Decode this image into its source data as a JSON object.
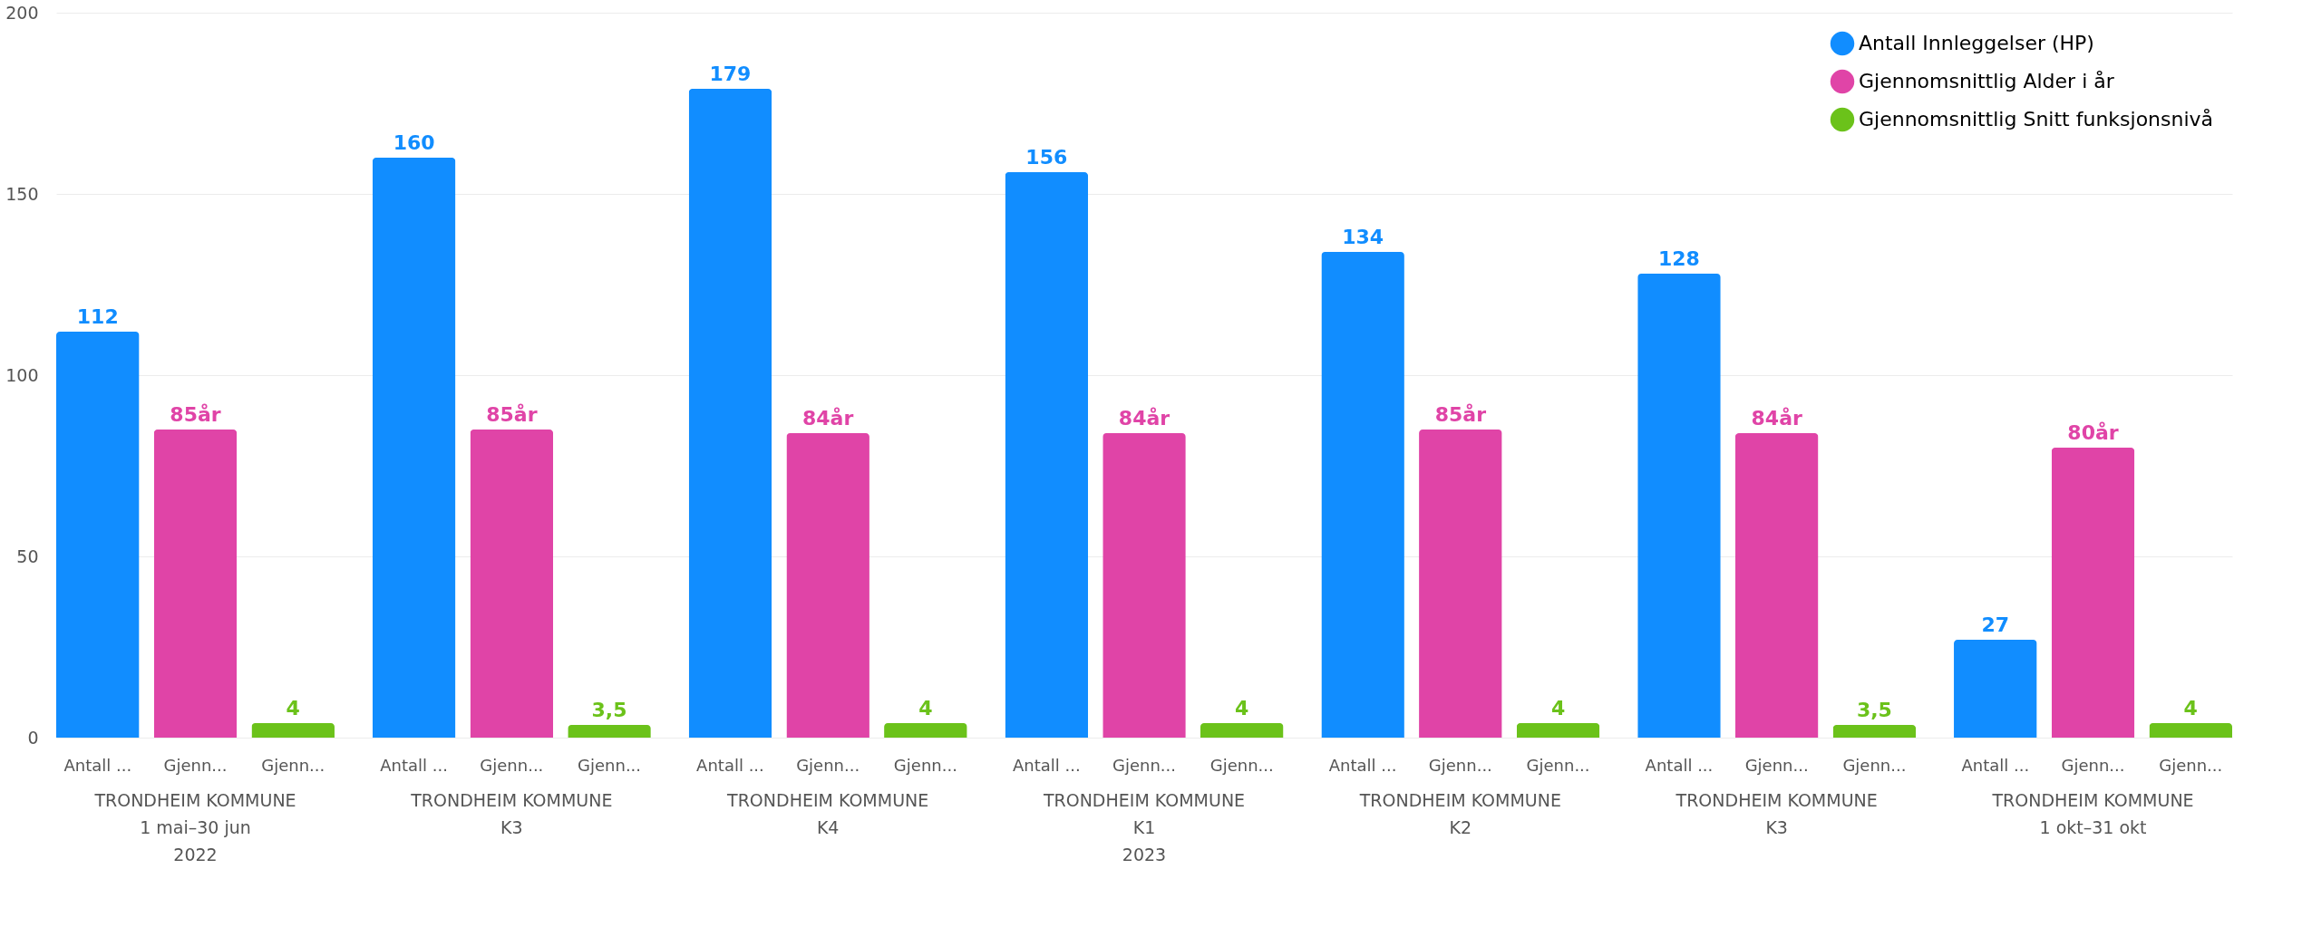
{
  "chart_data": {
    "type": "bar",
    "categories": [
      "TRONDHEIM KOMMUNE\n1 mai–30 jun\n2022",
      "TRONDHEIM KOMMUNE\nK3",
      "TRONDHEIM KOMMUNE\nK4",
      "TRONDHEIM KOMMUNE\nK1\n2023",
      "TRONDHEIM KOMMUNE\nK2",
      "TRONDHEIM KOMMUNE\nK3",
      "TRONDHEIM KOMMUNE\n1 okt–31 okt"
    ],
    "series": [
      {
        "name": "Antall Innleggelser (HP)",
        "color": "#118dff",
        "values": [
          112,
          160,
          179,
          156,
          134,
          128,
          27
        ],
        "value_labels": [
          "112",
          "160",
          "179",
          "156",
          "134",
          "128",
          "27"
        ]
      },
      {
        "name": "Gjennomsnittlig Alder i år",
        "color": "#e044a7",
        "values": [
          85,
          85,
          84,
          84,
          85,
          84,
          80
        ],
        "value_labels": [
          "85år",
          "85år",
          "84år",
          "84år",
          "85år",
          "84år",
          "80år"
        ]
      },
      {
        "name": "Gjennomsnittlig Snitt funksjonsnivå",
        "color": "#6bc21a",
        "values": [
          4,
          3.5,
          4,
          4,
          4,
          3.5,
          4
        ],
        "value_labels": [
          "4",
          "3,5",
          "4",
          "4",
          "4",
          "3,5",
          "4"
        ]
      }
    ],
    "annotations": [
      "Antall ...",
      "Gjenn...",
      "Gjenn...",
      "Antall ...",
      "Gjenn...",
      "Gjenn...",
      "Antall ...",
      "Gjenn...",
      "Gjenn...",
      "Antall ...",
      "Gjenn...",
      "Gjenn...",
      "Antall ...",
      "Gjenn...",
      "Gjenn...",
      "Antall ...",
      "Gjenn...",
      "Gjenn...",
      "Antall ...",
      "Gjenn...",
      "Gjenn..."
    ],
    "ylim": [
      0,
      200
    ],
    "yticks": [
      0,
      50,
      100,
      150,
      200
    ],
    "grid": "y",
    "legend": "top right"
  }
}
